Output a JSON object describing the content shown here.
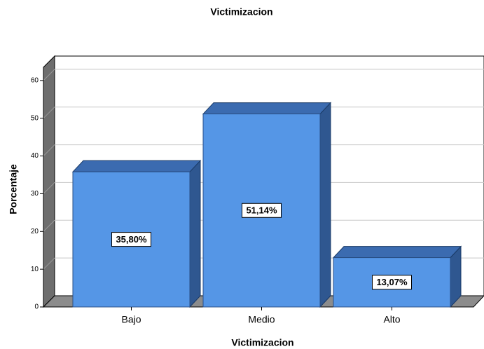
{
  "chart_data": {
    "type": "bar3d",
    "title": "Victimizacion",
    "x_label": "Victimizacion",
    "y_label": "Porcentaje",
    "categories": [
      "Bajo",
      "Medio",
      "Alto"
    ],
    "values": [
      35.8,
      51.14,
      13.07
    ],
    "value_labels": [
      "35,80%",
      "51,14%",
      "13,07%"
    ],
    "color": "#5596e6",
    "ylim": [
      0,
      63.5
    ],
    "yticks": [
      0,
      10,
      20,
      30,
      40,
      50,
      60
    ],
    "grid": true
  }
}
